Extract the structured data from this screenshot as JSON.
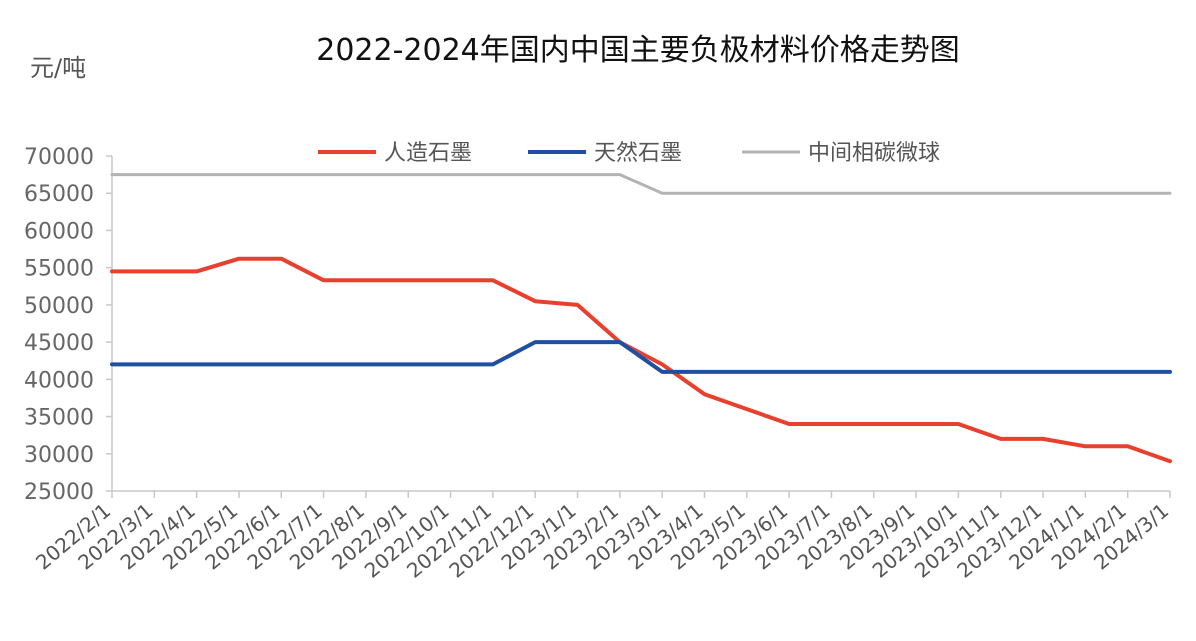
{
  "chart_data": {
    "type": "line",
    "title": "2022-2024年国内中国主要负极材料价格走势图",
    "ylabel": "元/吨",
    "xlabel": "",
    "ylim": [
      25000,
      70000
    ],
    "yticks": [
      70000,
      65000,
      60000,
      55000,
      50000,
      45000,
      40000,
      35000,
      30000,
      25000
    ],
    "grid": false,
    "legend_position": "top",
    "categories": [
      "2022/2/1",
      "2022/3/1",
      "2022/4/1",
      "2022/5/1",
      "2022/6/1",
      "2022/7/1",
      "2022/8/1",
      "2022/9/1",
      "2022/10/1",
      "2022/11/1",
      "2022/12/1",
      "2023/1/1",
      "2023/2/1",
      "2023/3/1",
      "2023/4/1",
      "2023/5/1",
      "2023/6/1",
      "2023/7/1",
      "2023/8/1",
      "2023/9/1",
      "2023/10/1",
      "2023/11/1",
      "2023/12/1",
      "2024/1/1",
      "2024/2/1",
      "2024/3/1"
    ],
    "series": [
      {
        "name": "人造石墨",
        "color": "#e8402c",
        "points": [
          [
            "2022/2/1",
            54500
          ],
          [
            "2022/4/1",
            54500
          ],
          [
            "2022/5/1",
            56200
          ],
          [
            "2022/6/1",
            56200
          ],
          [
            "2022/7/1",
            53300
          ],
          [
            "2022/11/1",
            53300
          ],
          [
            "2022/12/1",
            50500
          ],
          [
            "2023/1/1",
            50000
          ],
          [
            "2023/2/1",
            45000
          ],
          [
            "2023/3/1",
            42000
          ],
          [
            "2023/4/1",
            38000
          ],
          [
            "2023/5/1",
            36000
          ],
          [
            "2023/6/1",
            34000
          ],
          [
            "2023/10/1",
            34000
          ],
          [
            "2023/11/1",
            32000
          ],
          [
            "2023/12/1",
            32000
          ],
          [
            "2024/1/1",
            31000
          ],
          [
            "2024/2/1",
            31000
          ],
          [
            "2024/3/1",
            29000
          ]
        ]
      },
      {
        "name": "天然石墨",
        "color": "#1f4fa3",
        "points": [
          [
            "2022/2/1",
            42000
          ],
          [
            "2022/11/1",
            42000
          ],
          [
            "2022/12/1",
            45000
          ],
          [
            "2023/2/1",
            45000
          ],
          [
            "2023/3/1",
            41000
          ],
          [
            "2024/3/1",
            41000
          ]
        ]
      },
      {
        "name": "中间相碳微球",
        "color": "#b3b3b3",
        "points": [
          [
            "2022/2/1",
            67500
          ],
          [
            "2023/2/1",
            67500
          ],
          [
            "2023/3/1",
            65000
          ],
          [
            "2024/3/1",
            65000
          ]
        ]
      }
    ]
  }
}
